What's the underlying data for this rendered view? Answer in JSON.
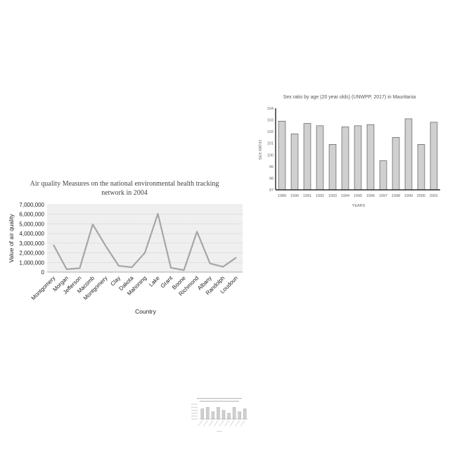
{
  "chart_data": [
    {
      "type": "line",
      "title": "Air quality Measures on the national environmental health tracking network in 2004",
      "title_lines": [
        "Air quality Measures on the national environmental health tracking",
        "network in 2004"
      ],
      "xlabel": "Country",
      "ylabel": "Value of air quality",
      "categories": [
        "Montgomery",
        "Morgan",
        "Jefferson",
        "Macomb",
        "Montgomery",
        "Clay",
        "Dakota",
        "Mahoning",
        "Lake",
        "Grant",
        "Boone",
        "Richmond",
        "Albany",
        "Randolph",
        "Loudoun"
      ],
      "values": [
        2800000,
        300000,
        400000,
        4950000,
        2700000,
        650000,
        500000,
        2000000,
        6050000,
        450000,
        200000,
        4200000,
        900000,
        550000,
        1500000
      ],
      "ylim": [
        0,
        7000000
      ],
      "yticks": [
        "0",
        "1,000,000",
        "2,000,000",
        "3,000,000",
        "4,000,000",
        "5,000,000",
        "6,000,000",
        "7,000,000"
      ],
      "grid": true,
      "line_color": "#a6a6a6"
    },
    {
      "type": "bar",
      "title": "Sex ratio by age (20 year olds) (UNWPP, 2017) in Mauritania",
      "xlabel": "YEARS",
      "ylabel": "SEX RATIO",
      "categories": [
        "1989",
        "1990",
        "1991",
        "1992",
        "1993",
        "1994",
        "1995",
        "1996",
        "1997",
        "1998",
        "1999",
        "2000",
        "2001"
      ],
      "values": [
        102.9,
        101.8,
        102.7,
        102.5,
        100.9,
        102.4,
        102.5,
        102.6,
        99.5,
        101.5,
        103.1,
        100.9,
        102.8
      ],
      "ylim": [
        97,
        104
      ],
      "yticks": [
        "97",
        "98",
        "99",
        "100",
        "101",
        "102",
        "103",
        "104"
      ],
      "grid": false,
      "bar_color": "#d0d0d0"
    },
    {
      "type": "bar",
      "values": [
        7,
        8,
        5,
        8,
        6,
        4,
        8,
        5,
        7
      ],
      "ylim": [
        0,
        10
      ],
      "bar_color": "#cfcfcf"
    }
  ]
}
